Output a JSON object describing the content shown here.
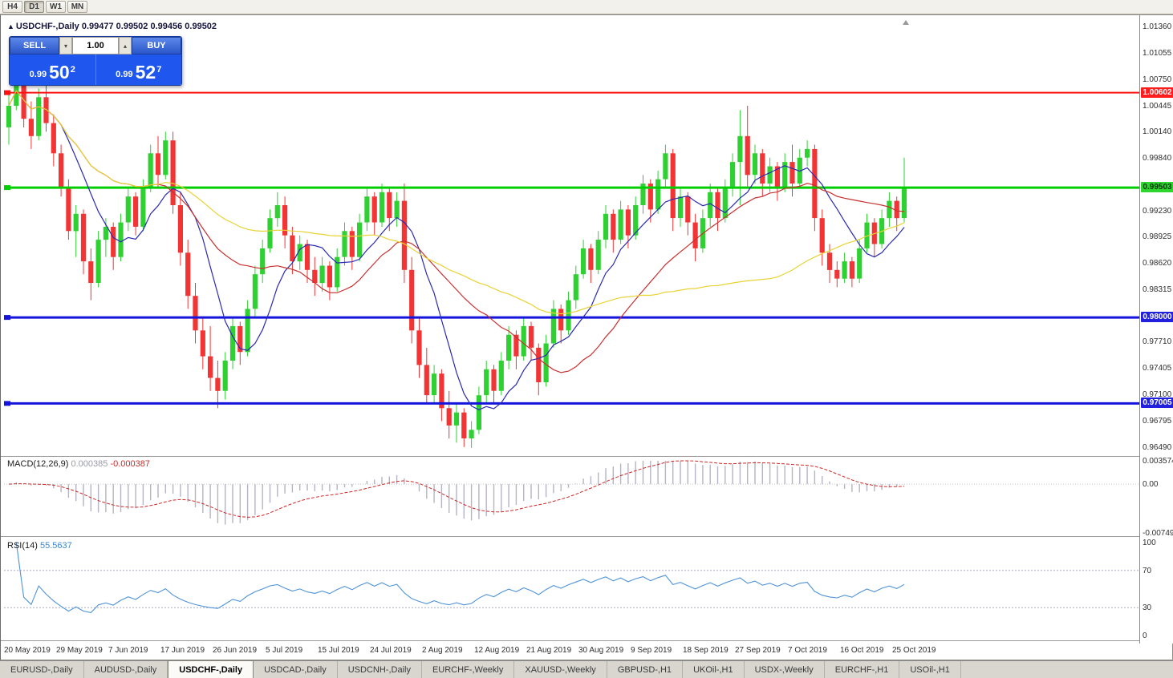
{
  "toolbar": {
    "timeframes": [
      {
        "label": "H4",
        "active": false
      },
      {
        "label": "D1",
        "active": true
      },
      {
        "label": "W1",
        "active": false
      },
      {
        "label": "MN",
        "active": false
      }
    ]
  },
  "header": {
    "marker": "▲",
    "symbol_title": "USDCHF-,Daily",
    "ohlc": "0.99477 0.99502 0.99456 0.99502"
  },
  "trade_panel": {
    "sell_label": "SELL",
    "buy_label": "BUY",
    "volume": "1.00",
    "spin_down": "▾",
    "spin_up": "▴",
    "sell_price": {
      "base": "0.99",
      "big": "50",
      "sup": "2"
    },
    "buy_price": {
      "base": "0.99",
      "big": "52",
      "sup": "7"
    }
  },
  "price_axis": {
    "labels": [
      "1.01360",
      "1.01055",
      "1.00750",
      "1.00445",
      "1.00140",
      "0.99840",
      "0.99230",
      "0.98925",
      "0.98620",
      "0.98315",
      "0.97710",
      "0.97405",
      "0.97100",
      "0.96795",
      "0.96490"
    ],
    "badges": [
      {
        "value": "1.00602",
        "bg": "#fe1d1d",
        "fg": "#ffffff"
      },
      {
        "value": "0.99503",
        "bg": "#2ed52e",
        "fg": "#003300"
      },
      {
        "value": "0.98000",
        "bg": "#2121dd",
        "fg": "#ffffff"
      },
      {
        "value": "0.97005",
        "bg": "#2121dd",
        "fg": "#ffffff"
      }
    ]
  },
  "macd_panel": {
    "label": "MACD(12,26,9)",
    "value_main": "0.000385",
    "value_signal": "-0.000387",
    "axis_labels": [
      "0.003574",
      "0.00",
      "-0.00749"
    ]
  },
  "rsi_panel": {
    "label": "RSI(14)",
    "value": "55.5637",
    "axis_labels": [
      "100",
      "70",
      "30",
      "0"
    ],
    "levels": [
      70,
      30
    ]
  },
  "date_axis": {
    "labels": [
      "20 May 2019",
      "29 May 2019",
      "7 Jun 2019",
      "17 Jun 2019",
      "26 Jun 2019",
      "5 Jul 2019",
      "15 Jul 2019",
      "24 Jul 2019",
      "2 Aug 2019",
      "12 Aug 2019",
      "21 Aug 2019",
      "30 Aug 2019",
      "9 Sep 2019",
      "18 Sep 2019",
      "27 Sep 2019",
      "7 Oct 2019",
      "16 Oct 2019",
      "25 Oct 2019"
    ]
  },
  "tabs": [
    {
      "label": "EURUSD-,Daily",
      "active": false
    },
    {
      "label": "AUDUSD-,Daily",
      "active": false
    },
    {
      "label": "USDCHF-,Daily",
      "active": true
    },
    {
      "label": "USDCAD-,Daily",
      "active": false
    },
    {
      "label": "USDCNH-,Daily",
      "active": false
    },
    {
      "label": "EURCHF-,Weekly",
      "active": false
    },
    {
      "label": "XAUUSD-,Weekly",
      "active": false
    },
    {
      "label": "GBPUSD-,H1",
      "active": false
    },
    {
      "label": "UKOil-,H1",
      "active": false
    },
    {
      "label": "USDX-,Weekly",
      "active": false
    },
    {
      "label": "EURCHF-,H1",
      "active": false
    },
    {
      "label": "USOil-,H1",
      "active": false
    }
  ],
  "chart_data": {
    "type": "candlestick",
    "symbol": "USDCHF",
    "timeframe": "Daily",
    "title": "USDCHF-,Daily",
    "price_range": {
      "min": 0.96415,
      "max": 1.0148
    },
    "colors": {
      "up": "#2fd132",
      "down": "#f23434",
      "ma_fast": "#2a2ab2",
      "ma_mid": "#c83030",
      "ma_slow": "#e8d334",
      "macd_hist": "#b4b4c4",
      "macd_signal": "#cc2828",
      "rsi": "#4f93d6"
    },
    "levels": [
      {
        "price": 1.00602,
        "color": "#fe1010",
        "width": 2
      },
      {
        "price": 0.99503,
        "color": "#00ce00",
        "width": 3
      },
      {
        "price": 0.98,
        "color": "#1414dd",
        "width": 3
      },
      {
        "price": 0.97005,
        "color": "#1414dd",
        "width": 3
      }
    ],
    "moving_averages": [
      {
        "period": 8,
        "color": "#2a2ab2"
      },
      {
        "period": 21,
        "color": "#c83030"
      },
      {
        "period": 50,
        "color": "#e8d334"
      }
    ],
    "macd": {
      "fast": 12,
      "slow": 26,
      "signal": 9,
      "range": {
        "min": -0.00749,
        "max": 0.003574
      }
    },
    "rsi": {
      "period": 14
    },
    "candles": [
      [
        1.002,
        1.006,
        1.0,
        1.0045
      ],
      [
        1.0045,
        1.009,
        1.004,
        1.008
      ],
      [
        1.008,
        1.009,
        1.002,
        1.003
      ],
      [
        1.003,
        1.005,
        0.9995,
        1.001
      ],
      [
        1.001,
        1.0065,
        1.0005,
        1.0055
      ],
      [
        1.0055,
        1.007,
        1.0015,
        1.0025
      ],
      [
        1.0025,
        1.0035,
        0.9975,
        0.999
      ],
      [
        0.999,
        1.0,
        0.994,
        0.995
      ],
      [
        0.995,
        0.996,
        0.989,
        0.99
      ],
      [
        0.99,
        0.993,
        0.987,
        0.992
      ],
      [
        0.992,
        0.9925,
        0.985,
        0.9865
      ],
      [
        0.9865,
        0.988,
        0.982,
        0.984
      ],
      [
        0.984,
        0.99,
        0.9835,
        0.989
      ],
      [
        0.989,
        0.9915,
        0.987,
        0.9905
      ],
      [
        0.9905,
        0.991,
        0.9855,
        0.987
      ],
      [
        0.987,
        0.992,
        0.9865,
        0.991
      ],
      [
        0.991,
        0.995,
        0.99,
        0.994
      ],
      [
        0.994,
        0.9945,
        0.9895,
        0.9905
      ],
      [
        0.9905,
        0.996,
        0.99,
        0.995
      ],
      [
        0.995,
        1.0,
        0.9945,
        0.999
      ],
      [
        0.999,
        1.001,
        0.995,
        0.9965
      ],
      [
        0.9965,
        1.0015,
        0.996,
        1.0005
      ],
      [
        1.0005,
        1.0015,
        0.992,
        0.993
      ],
      [
        0.993,
        0.9945,
        0.986,
        0.9875
      ],
      [
        0.9875,
        0.989,
        0.981,
        0.9825
      ],
      [
        0.9825,
        0.984,
        0.977,
        0.9785
      ],
      [
        0.9785,
        0.98,
        0.974,
        0.9755
      ],
      [
        0.9755,
        0.979,
        0.9715,
        0.973
      ],
      [
        0.973,
        0.975,
        0.9695,
        0.9715
      ],
      [
        0.9715,
        0.976,
        0.9705,
        0.975
      ],
      [
        0.975,
        0.98,
        0.974,
        0.979
      ],
      [
        0.979,
        0.9795,
        0.9745,
        0.976
      ],
      [
        0.976,
        0.982,
        0.9755,
        0.981
      ],
      [
        0.981,
        0.986,
        0.98,
        0.985
      ],
      [
        0.985,
        0.989,
        0.984,
        0.988
      ],
      [
        0.988,
        0.9925,
        0.9875,
        0.9915
      ],
      [
        0.9915,
        0.9945,
        0.9905,
        0.993
      ],
      [
        0.993,
        0.994,
        0.988,
        0.9895
      ],
      [
        0.9895,
        0.9905,
        0.985,
        0.9865
      ],
      [
        0.9865,
        0.9895,
        0.9855,
        0.9885
      ],
      [
        0.9885,
        0.989,
        0.984,
        0.9855
      ],
      [
        0.9855,
        0.987,
        0.9825,
        0.984
      ],
      [
        0.984,
        0.987,
        0.983,
        0.986
      ],
      [
        0.986,
        0.9865,
        0.982,
        0.9835
      ],
      [
        0.9835,
        0.988,
        0.983,
        0.987
      ],
      [
        0.987,
        0.991,
        0.986,
        0.99
      ],
      [
        0.99,
        0.9905,
        0.9855,
        0.987
      ],
      [
        0.987,
        0.992,
        0.9865,
        0.991
      ],
      [
        0.991,
        0.995,
        0.99,
        0.994
      ],
      [
        0.994,
        0.9945,
        0.9895,
        0.991
      ],
      [
        0.991,
        0.9955,
        0.9905,
        0.9945
      ],
      [
        0.9945,
        0.995,
        0.99,
        0.9915
      ],
      [
        0.9915,
        0.9945,
        0.9905,
        0.9935
      ],
      [
        0.9935,
        0.9955,
        0.984,
        0.9855
      ],
      [
        0.9855,
        0.987,
        0.977,
        0.9785
      ],
      [
        0.9785,
        0.98,
        0.973,
        0.9745
      ],
      [
        0.9745,
        0.9765,
        0.97,
        0.971
      ],
      [
        0.971,
        0.9745,
        0.97,
        0.9735
      ],
      [
        0.9735,
        0.974,
        0.968,
        0.9695
      ],
      [
        0.9695,
        0.9715,
        0.966,
        0.9675
      ],
      [
        0.9675,
        0.97,
        0.9655,
        0.969
      ],
      [
        0.969,
        0.9695,
        0.965,
        0.966
      ],
      [
        0.966,
        0.968,
        0.9649,
        0.967
      ],
      [
        0.967,
        0.972,
        0.9665,
        0.971
      ],
      [
        0.971,
        0.975,
        0.97,
        0.974
      ],
      [
        0.974,
        0.9745,
        0.97,
        0.9715
      ],
      [
        0.9715,
        0.976,
        0.971,
        0.975
      ],
      [
        0.975,
        0.979,
        0.974,
        0.978
      ],
      [
        0.978,
        0.9785,
        0.974,
        0.9755
      ],
      [
        0.9755,
        0.98,
        0.975,
        0.979
      ],
      [
        0.979,
        0.9795,
        0.975,
        0.9765
      ],
      [
        0.9765,
        0.977,
        0.971,
        0.9725
      ],
      [
        0.9725,
        0.978,
        0.972,
        0.977
      ],
      [
        0.977,
        0.982,
        0.9765,
        0.981
      ],
      [
        0.981,
        0.9815,
        0.977,
        0.9785
      ],
      [
        0.9785,
        0.983,
        0.978,
        0.982
      ],
      [
        0.982,
        0.986,
        0.981,
        0.985
      ],
      [
        0.985,
        0.989,
        0.9845,
        0.988
      ],
      [
        0.988,
        0.9885,
        0.984,
        0.9855
      ],
      [
        0.9855,
        0.99,
        0.985,
        0.989
      ],
      [
        0.989,
        0.993,
        0.988,
        0.992
      ],
      [
        0.992,
        0.9925,
        0.9875,
        0.989
      ],
      [
        0.989,
        0.9935,
        0.9885,
        0.9925
      ],
      [
        0.9925,
        0.993,
        0.988,
        0.9895
      ],
      [
        0.9895,
        0.994,
        0.989,
        0.993
      ],
      [
        0.993,
        0.9965,
        0.992,
        0.9955
      ],
      [
        0.9955,
        0.996,
        0.991,
        0.9925
      ],
      [
        0.9925,
        0.997,
        0.992,
        0.996
      ],
      [
        0.996,
        1.0,
        0.995,
        0.999
      ],
      [
        0.999,
        0.9995,
        0.99,
        0.9915
      ],
      [
        0.9915,
        0.995,
        0.9905,
        0.994
      ],
      [
        0.994,
        0.9945,
        0.9895,
        0.991
      ],
      [
        0.991,
        0.992,
        0.9865,
        0.988
      ],
      [
        0.988,
        0.9925,
        0.9875,
        0.9915
      ],
      [
        0.9915,
        0.9955,
        0.9905,
        0.9945
      ],
      [
        0.9945,
        0.995,
        0.99,
        0.9915
      ],
      [
        0.9915,
        0.996,
        0.991,
        0.995
      ],
      [
        0.995,
        0.999,
        0.994,
        0.998
      ],
      [
        0.998,
        1.004,
        0.993,
        1.001
      ],
      [
        1.001,
        1.0045,
        0.995,
        0.9965
      ],
      [
        0.9965,
        1.0,
        0.9955,
        0.999
      ],
      [
        0.999,
        0.9995,
        0.994,
        0.9955
      ],
      [
        0.9955,
        0.9985,
        0.9945,
        0.9975
      ],
      [
        0.9975,
        0.998,
        0.9935,
        0.995
      ],
      [
        0.995,
        0.999,
        0.9945,
        0.998
      ],
      [
        0.998,
        1.0,
        0.994,
        0.9955
      ],
      [
        0.9955,
        0.9995,
        0.995,
        0.9985
      ],
      [
        0.9985,
        1.0005,
        0.9975,
        0.9995
      ],
      [
        0.9995,
        1.0,
        0.99,
        0.9915
      ],
      [
        0.9915,
        0.9925,
        0.986,
        0.9875
      ],
      [
        0.9875,
        0.9885,
        0.984,
        0.9855
      ],
      [
        0.9855,
        0.9865,
        0.9835,
        0.9845
      ],
      [
        0.9845,
        0.9875,
        0.984,
        0.9865
      ],
      [
        0.9865,
        0.987,
        0.9835,
        0.9845
      ],
      [
        0.9845,
        0.989,
        0.984,
        0.988
      ],
      [
        0.988,
        0.992,
        0.9875,
        0.991
      ],
      [
        0.991,
        0.9915,
        0.987,
        0.9885
      ],
      [
        0.9885,
        0.9925,
        0.988,
        0.9915
      ],
      [
        0.9915,
        0.9945,
        0.9905,
        0.9935
      ],
      [
        0.9935,
        0.994,
        0.99,
        0.9915
      ],
      [
        0.9915,
        0.9985,
        0.991,
        0.99502
      ]
    ]
  }
}
